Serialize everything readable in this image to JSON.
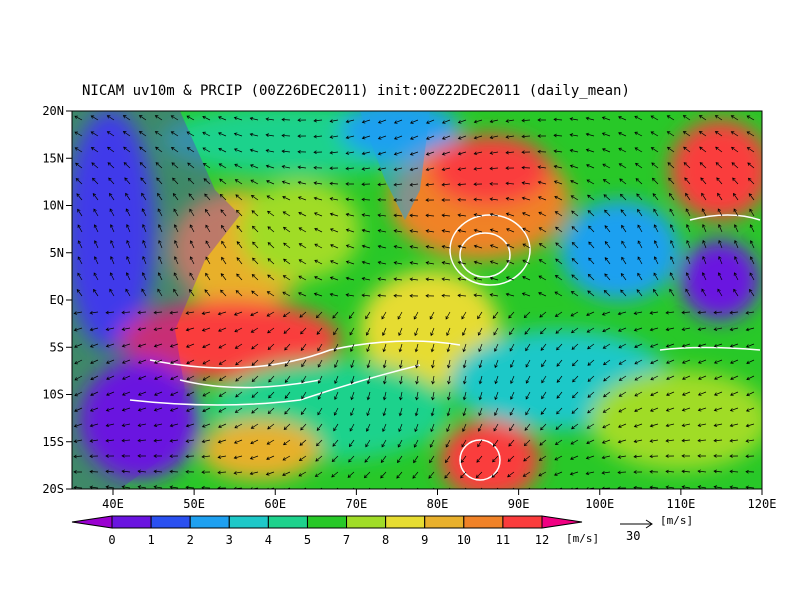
{
  "header": {
    "title": "NICAM uv10m & PRCIP (00Z26DEC2011) init:00Z22DEC2011 (daily_mean)"
  },
  "map": {
    "lat_labels": [
      "20N",
      "15N",
      "10N",
      "5N",
      "EQ",
      "5S",
      "10S",
      "15S",
      "20S"
    ],
    "lon_labels": [
      "40E",
      "50E",
      "60E",
      "70E",
      "80E",
      "90E",
      "100E",
      "110E",
      "120E"
    ]
  },
  "colorbar": {
    "labels": [
      "0",
      "1",
      "2",
      "3",
      "4",
      "5",
      "7",
      "8",
      "9",
      "10",
      "11",
      "12"
    ],
    "unit": "[m/s]",
    "colors": [
      "#9a00d0",
      "#6a14e0",
      "#2a50f0",
      "#1ea0f0",
      "#1ec8c8",
      "#1ed28c",
      "#28c828",
      "#a0dc28",
      "#e6dc32",
      "#e8b02c",
      "#f08228",
      "#fa3c3c",
      "#f00082"
    ]
  },
  "vector_reference": {
    "value": "30",
    "unit": "[m/s]"
  }
}
